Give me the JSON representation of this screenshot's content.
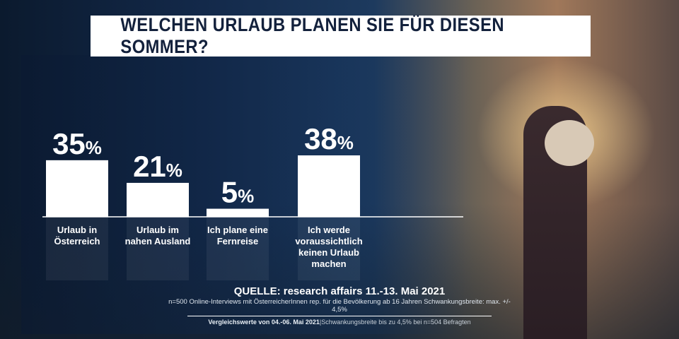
{
  "title": "WELCHEN URLAUB PLANEN SIE FÜR DIESEN SOMMER?",
  "chart_data": {
    "type": "bar",
    "title": "WELCHEN URLAUB PLANEN SIE FÜR DIESEN SOMMER?",
    "categories": [
      [
        "Urlaub in",
        "Österreich"
      ],
      [
        "Urlaub im",
        "nahen Ausland"
      ],
      [
        "Ich plane eine",
        "Fernreise"
      ],
      [
        "Ich werde",
        "voraussichtlich",
        "keinen Urlaub",
        "machen"
      ]
    ],
    "values": [
      35,
      21,
      5,
      38
    ],
    "unit": "%",
    "bar_color": "#ffffff",
    "ylim": [
      0,
      40
    ]
  },
  "footer": {
    "source": "QUELLE: research affairs 11.-13. Mai 2021",
    "methodology": "n=500 Online-Interviews mit ÖsterreicherInnen rep. für die Bevölkerung ab 16 Jahren  Schwankungsbreite: max. +/- 4,5%",
    "comparison_bold": "Vergleichswerte von  04.-06. Mai 2021",
    "comparison_rest": "|Schwankungsbreite bis zu 4,5% bei n=504 Befragten"
  }
}
